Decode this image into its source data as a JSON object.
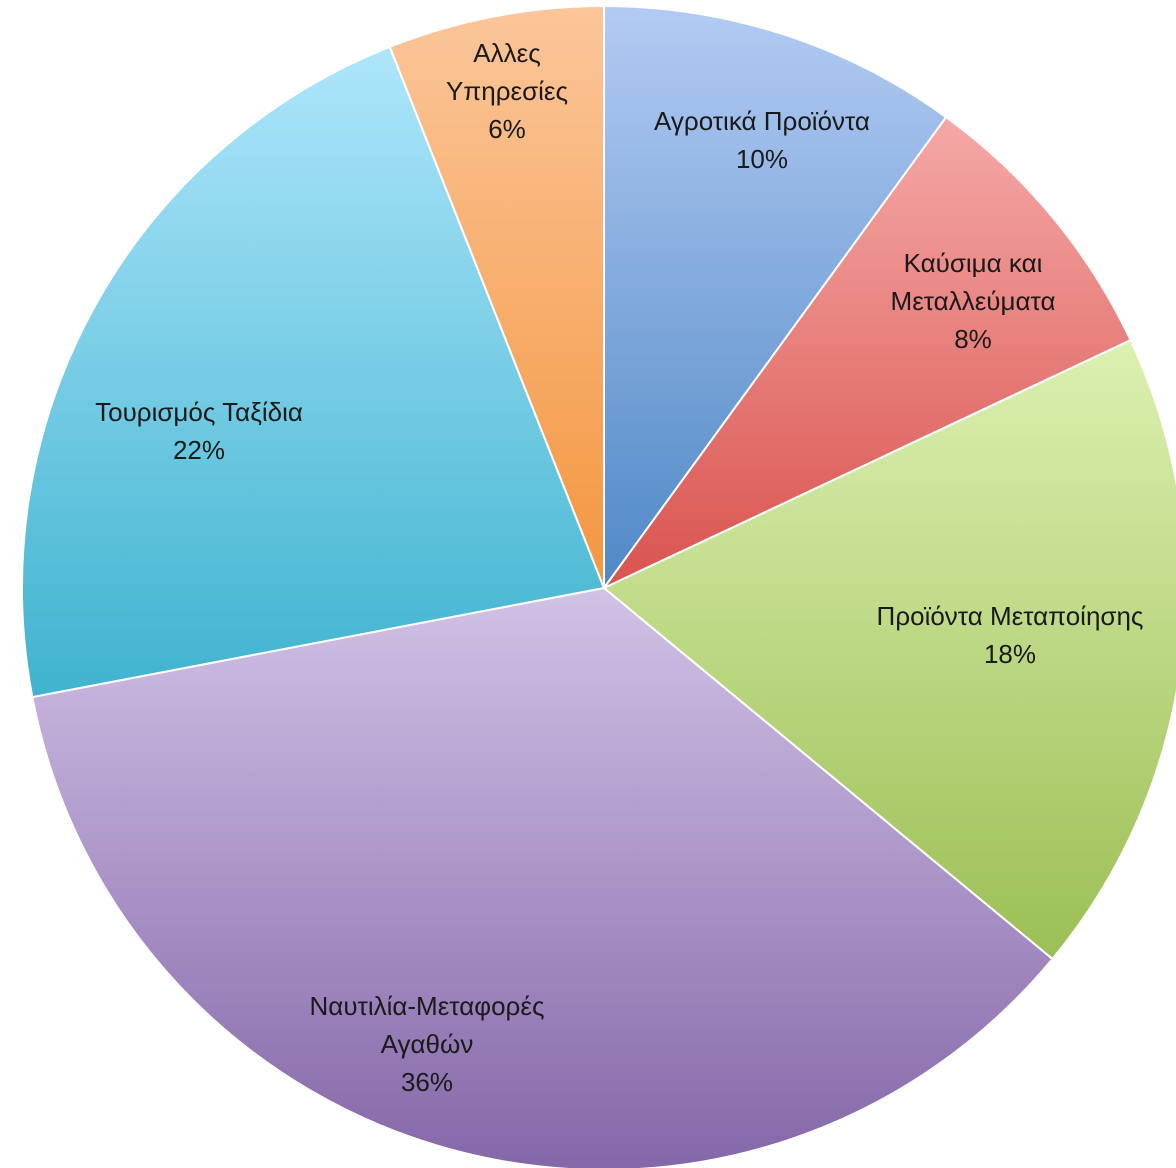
{
  "chart_data": {
    "type": "pie",
    "title": "",
    "slices": [
      {
        "name": "Αγροτικά Προϊόντα",
        "value": 10,
        "label_lines": [
          "Αγροτικά Προϊόντα"
        ],
        "percent_label": "10%",
        "color_light": "#b3cbf3",
        "color_dark": "#4f88c6"
      },
      {
        "name": "Καύσιμα και Μεταλλεύματα",
        "value": 8,
        "label_lines": [
          "Καύσιμα και",
          "Μεταλλεύματα"
        ],
        "percent_label": "8%",
        "color_light": "#f5a9a7",
        "color_dark": "#d9534e"
      },
      {
        "name": "Προϊόντα Μεταποίησης",
        "value": 18,
        "label_lines": [
          "Προϊόντα Μεταποίησης"
        ],
        "percent_label": "18%",
        "color_light": "#dcf0b1",
        "color_dark": "#9cbf55"
      },
      {
        "name": "Ναυτιλία-Μεταφορές Αγαθών",
        "value": 36,
        "label_lines": [
          "Ναυτιλία-Μεταφορές",
          "Αγαθών"
        ],
        "percent_label": "36%",
        "color_light": "#d1c2e6",
        "color_dark": "#8467a8"
      },
      {
        "name": "Τουρισμός Ταξίδια",
        "value": 22,
        "label_lines": [
          "Τουρισμός Ταξίδια"
        ],
        "percent_label": "22%",
        "color_light": "#aee6fb",
        "color_dark": "#3fb3cf"
      },
      {
        "name": "Αλλες Υπηρεσίες",
        "value": 6,
        "label_lines": [
          "Αλλες",
          "Υπηρεσίες"
        ],
        "percent_label": "6%",
        "color_light": "#fbc69a",
        "color_dark": "#f4963f"
      }
    ]
  }
}
